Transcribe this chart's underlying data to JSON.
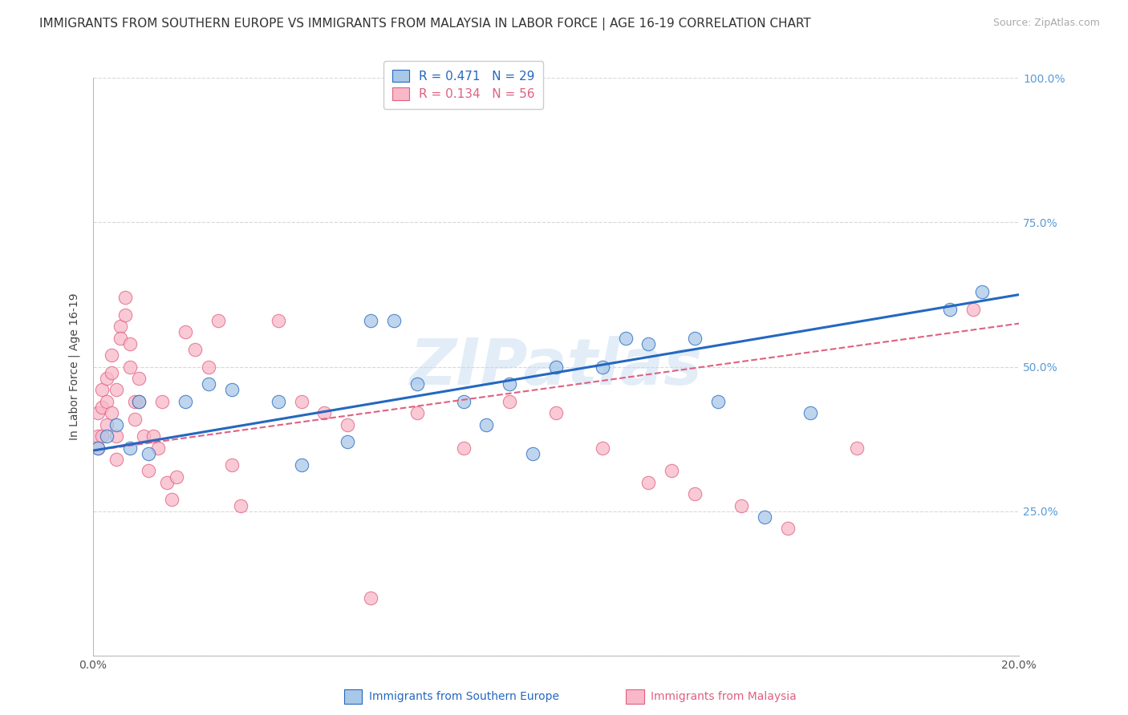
{
  "title": "IMMIGRANTS FROM SOUTHERN EUROPE VS IMMIGRANTS FROM MALAYSIA IN LABOR FORCE | AGE 16-19 CORRELATION CHART",
  "source": "Source: ZipAtlas.com",
  "xlabel": "",
  "ylabel": "In Labor Force | Age 16-19",
  "xlim": [
    0.0,
    0.2
  ],
  "ylim": [
    0.0,
    1.0
  ],
  "xticks": [
    0.0,
    0.05,
    0.1,
    0.15,
    0.2
  ],
  "xticklabels": [
    "0.0%",
    "",
    "",
    "",
    "20.0%"
  ],
  "yticks": [
    0.0,
    0.25,
    0.5,
    0.75,
    1.0
  ],
  "yticklabels": [
    "",
    "25.0%",
    "50.0%",
    "75.0%",
    "100.0%"
  ],
  "background_color": "#ffffff",
  "grid_color": "#d8d8d8",
  "series1_color": "#a8c8e8",
  "series2_color": "#f8b8c8",
  "series1_label": "Immigrants from Southern Europe",
  "series2_label": "Immigrants from Malaysia",
  "series1_R": "0.471",
  "series1_N": "29",
  "series2_R": "0.134",
  "series2_N": "56",
  "series1_line_color": "#2468c0",
  "series2_line_color": "#e06080",
  "watermark": "ZIPatlas",
  "series1_x": [
    0.001,
    0.003,
    0.005,
    0.008,
    0.01,
    0.012,
    0.02,
    0.025,
    0.03,
    0.04,
    0.045,
    0.055,
    0.06,
    0.065,
    0.07,
    0.08,
    0.085,
    0.09,
    0.095,
    0.1,
    0.11,
    0.115,
    0.12,
    0.13,
    0.135,
    0.145,
    0.155,
    0.185,
    0.192
  ],
  "series1_y": [
    0.36,
    0.38,
    0.4,
    0.36,
    0.44,
    0.35,
    0.44,
    0.47,
    0.46,
    0.44,
    0.33,
    0.37,
    0.58,
    0.58,
    0.47,
    0.44,
    0.4,
    0.47,
    0.35,
    0.5,
    0.5,
    0.55,
    0.54,
    0.55,
    0.44,
    0.24,
    0.42,
    0.6,
    0.63
  ],
  "series2_x": [
    0.001,
    0.001,
    0.001,
    0.002,
    0.002,
    0.002,
    0.003,
    0.003,
    0.003,
    0.004,
    0.004,
    0.004,
    0.005,
    0.005,
    0.005,
    0.006,
    0.006,
    0.007,
    0.007,
    0.008,
    0.008,
    0.009,
    0.009,
    0.01,
    0.01,
    0.011,
    0.012,
    0.013,
    0.014,
    0.015,
    0.016,
    0.017,
    0.018,
    0.02,
    0.022,
    0.025,
    0.027,
    0.03,
    0.032,
    0.04,
    0.045,
    0.05,
    0.055,
    0.06,
    0.07,
    0.08,
    0.09,
    0.1,
    0.11,
    0.12,
    0.125,
    0.13,
    0.14,
    0.15,
    0.165,
    0.19
  ],
  "series2_y": [
    0.42,
    0.38,
    0.36,
    0.46,
    0.43,
    0.38,
    0.48,
    0.44,
    0.4,
    0.52,
    0.49,
    0.42,
    0.46,
    0.38,
    0.34,
    0.57,
    0.55,
    0.62,
    0.59,
    0.54,
    0.5,
    0.44,
    0.41,
    0.48,
    0.44,
    0.38,
    0.32,
    0.38,
    0.36,
    0.44,
    0.3,
    0.27,
    0.31,
    0.56,
    0.53,
    0.5,
    0.58,
    0.33,
    0.26,
    0.58,
    0.44,
    0.42,
    0.4,
    0.1,
    0.42,
    0.36,
    0.44,
    0.42,
    0.36,
    0.3,
    0.32,
    0.28,
    0.26,
    0.22,
    0.36,
    0.6
  ],
  "title_fontsize": 11,
  "axis_fontsize": 10,
  "ylabel_fontsize": 10,
  "legend_fontsize": 11,
  "line1_intercept": 0.355,
  "line1_slope": 1.35,
  "line2_intercept": 0.355,
  "line2_slope": 1.1
}
